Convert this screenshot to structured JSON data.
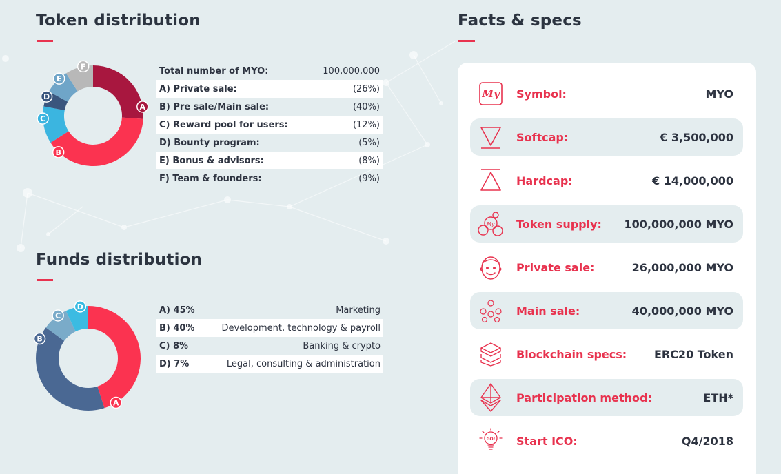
{
  "token_section": {
    "title": "Token distribution",
    "rows": [
      {
        "label": "Total number of MYO:",
        "value": "100,000,000"
      },
      {
        "label": "A) Private sale:",
        "value": "(26%)"
      },
      {
        "label": "B) Pre sale/Main sale:",
        "value": "(40%)"
      },
      {
        "label": "C) Reward pool for users:",
        "value": "(12%)"
      },
      {
        "label": "D) Bounty program:",
        "value": "(5%)"
      },
      {
        "label": "E) Bonus & advisors:",
        "value": "(8%)"
      },
      {
        "label": "F) Team & founders:",
        "value": "(9%)"
      }
    ]
  },
  "funds_section": {
    "title": "Funds distribution",
    "rows": [
      {
        "label": "A) 45%",
        "value": "Marketing"
      },
      {
        "label": "B) 40%",
        "value": "Development, technology & payroll"
      },
      {
        "label": "C) 8%",
        "value": "Banking & crypto"
      },
      {
        "label": "D) 7%",
        "value": "Legal, consulting & administration"
      }
    ]
  },
  "facts_section": {
    "title": "Facts & specs",
    "items": [
      {
        "icon": "my-logo-icon",
        "label": "Symbol:",
        "value": "MYO"
      },
      {
        "icon": "triangle-down-icon",
        "label": "Softcap:",
        "value": "€ 3,500,000"
      },
      {
        "icon": "triangle-up-icon",
        "label": "Hardcap:",
        "value": "€ 14,000,000"
      },
      {
        "icon": "coins-icon",
        "label": "Token supply:",
        "value": "100,000,000 MYO"
      },
      {
        "icon": "face-icon",
        "label": "Private sale:",
        "value": "26,000,000 MYO"
      },
      {
        "icon": "people-icon",
        "label": "Main sale:",
        "value": "40,000,000 MYO"
      },
      {
        "icon": "blocks-icon",
        "label": "Blockchain specs:",
        "value": "ERC20 Token"
      },
      {
        "icon": "ethereum-icon",
        "label": "Participation method:",
        "value": "ETH*"
      },
      {
        "icon": "lightbulb-icon",
        "label": "Start ICO:",
        "value": "Q4/2018"
      }
    ]
  },
  "colors": {
    "accent": "#e8334f",
    "background": "#e4edef"
  },
  "chart_data": [
    {
      "type": "pie",
      "categories": [
        "A",
        "B",
        "C",
        "D",
        "E",
        "F"
      ],
      "values": [
        26,
        40,
        12,
        5,
        8,
        9
      ],
      "colors": [
        "#a8173f",
        "#fb3350",
        "#3bb5e0",
        "#3a567e",
        "#6fa5c8",
        "#b8b8b8"
      ]
    },
    {
      "type": "pie",
      "categories": [
        "A",
        "B",
        "C",
        "D"
      ],
      "values": [
        45,
        40,
        8,
        7
      ],
      "colors": [
        "#fb3350",
        "#4a6893",
        "#7aabc9",
        "#3bbbe2"
      ]
    }
  ]
}
